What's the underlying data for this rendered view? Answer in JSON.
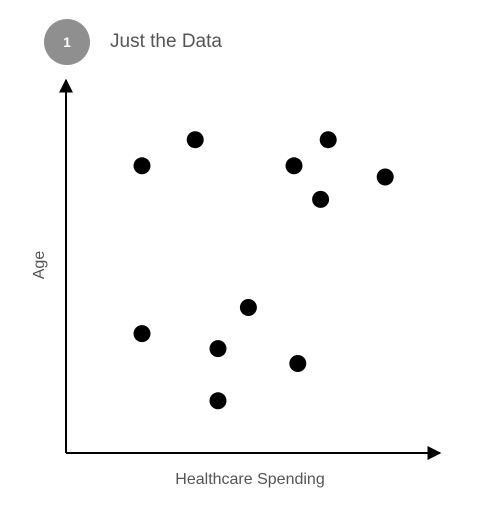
{
  "header": {
    "step_number": "1",
    "title": "Just the Data"
  },
  "chart_data": {
    "type": "scatter",
    "title": "Just the Data",
    "xlabel": "Healthcare Spending",
    "ylabel": "Age",
    "xlim": [
      0,
      100
    ],
    "ylim": [
      0,
      100
    ],
    "ticks": false,
    "grid": false,
    "legend": "none",
    "colors": {
      "points": "#000000",
      "axes": "#000000",
      "badge": "#8f8f8f"
    },
    "points": [
      {
        "x": 20,
        "y": 77
      },
      {
        "x": 34,
        "y": 84
      },
      {
        "x": 60,
        "y": 77
      },
      {
        "x": 69,
        "y": 84
      },
      {
        "x": 84,
        "y": 74
      },
      {
        "x": 67,
        "y": 68
      },
      {
        "x": 48,
        "y": 39
      },
      {
        "x": 20,
        "y": 32
      },
      {
        "x": 40,
        "y": 28
      },
      {
        "x": 61,
        "y": 24
      },
      {
        "x": 40,
        "y": 14
      }
    ]
  }
}
